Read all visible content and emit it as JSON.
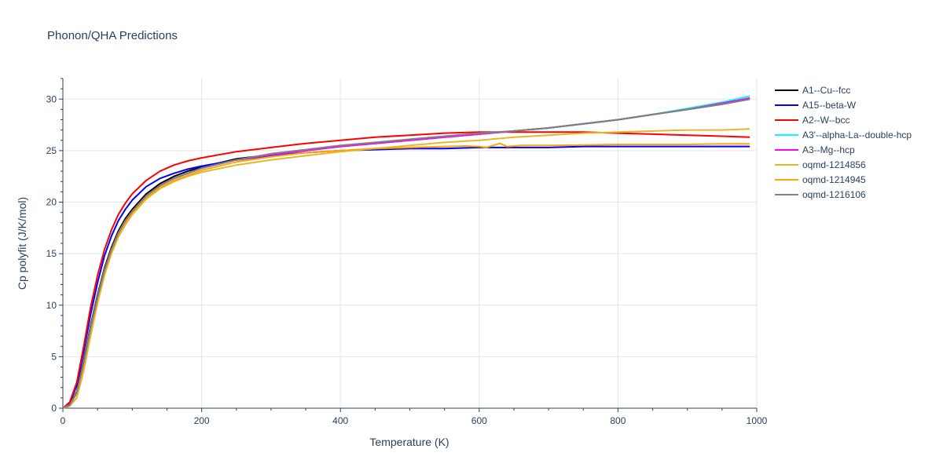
{
  "chart_data": {
    "type": "line",
    "title": "Phonon/QHA Predictions",
    "xlabel": "Temperature (K)",
    "ylabel": "Cp polyfit (J/K/mol)",
    "xlim": [
      0,
      1000
    ],
    "ylim": [
      0,
      32
    ],
    "xticks": [
      0,
      200,
      400,
      600,
      800,
      1000
    ],
    "yticks": [
      0,
      5,
      10,
      15,
      20,
      25,
      30
    ],
    "grid": true,
    "legend_position": "right",
    "series": [
      {
        "name": "A1--Cu--fcc",
        "color": "#000000",
        "x": [
          0,
          10,
          20,
          30,
          40,
          50,
          60,
          70,
          80,
          90,
          100,
          120,
          140,
          160,
          180,
          200,
          250,
          300,
          350,
          400,
          450,
          500,
          550,
          600,
          650,
          700,
          750,
          800,
          850,
          900,
          950,
          990
        ],
        "y": [
          0,
          0.3,
          1.6,
          4.6,
          8.0,
          11.0,
          13.6,
          15.6,
          17.2,
          18.4,
          19.3,
          20.8,
          21.8,
          22.5,
          23.0,
          23.4,
          24.2,
          24.6,
          25.0,
          25.4,
          25.7,
          26.0,
          26.3,
          26.6,
          26.9,
          27.2,
          27.6,
          28.0,
          28.5,
          29.0,
          29.5,
          30.0
        ]
      },
      {
        "name": "A15--beta-W",
        "color": "#0000ff",
        "x": [
          0,
          10,
          20,
          30,
          40,
          50,
          60,
          70,
          80,
          90,
          100,
          120,
          140,
          160,
          180,
          200,
          250,
          300,
          350,
          400,
          450,
          500,
          550,
          600,
          650,
          700,
          750,
          800,
          850,
          900,
          950,
          990
        ],
        "y": [
          0,
          0.5,
          2.2,
          5.5,
          9.1,
          12.2,
          14.8,
          16.7,
          18.2,
          19.3,
          20.2,
          21.5,
          22.3,
          22.8,
          23.2,
          23.5,
          24.1,
          24.5,
          24.8,
          25.0,
          25.1,
          25.2,
          25.2,
          25.3,
          25.3,
          25.3,
          25.4,
          25.4,
          25.4,
          25.4,
          25.4,
          25.4
        ]
      },
      {
        "name": "A2--W--bcc",
        "color": "#ff0000",
        "x": [
          0,
          10,
          20,
          30,
          40,
          50,
          60,
          70,
          80,
          90,
          100,
          120,
          140,
          160,
          180,
          200,
          250,
          300,
          350,
          400,
          450,
          500,
          550,
          600,
          650,
          700,
          750,
          800,
          850,
          900,
          950,
          990
        ],
        "y": [
          0,
          0.6,
          2.5,
          6.0,
          9.8,
          12.9,
          15.4,
          17.3,
          18.8,
          19.9,
          20.8,
          22.1,
          23.0,
          23.6,
          24.0,
          24.3,
          24.9,
          25.3,
          25.7,
          26.0,
          26.3,
          26.5,
          26.7,
          26.8,
          26.8,
          26.8,
          26.8,
          26.7,
          26.6,
          26.5,
          26.4,
          26.3
        ]
      },
      {
        "name": "A3'--alpha-La--double-hcp",
        "color": "#00ffff",
        "x": [
          0,
          10,
          20,
          30,
          40,
          50,
          60,
          70,
          80,
          90,
          100,
          120,
          140,
          160,
          180,
          200,
          250,
          300,
          350,
          400,
          450,
          500,
          550,
          600,
          650,
          700,
          750,
          800,
          850,
          900,
          950,
          990
        ],
        "y": [
          0,
          0.3,
          1.5,
          4.4,
          7.8,
          10.8,
          13.4,
          15.4,
          17.0,
          18.2,
          19.1,
          20.6,
          21.6,
          22.3,
          22.8,
          23.3,
          24.1,
          24.6,
          25.0,
          25.4,
          25.7,
          26.0,
          26.3,
          26.6,
          26.9,
          27.2,
          27.6,
          28.0,
          28.5,
          29.1,
          29.7,
          30.3
        ]
      },
      {
        "name": "A3--Mg--hcp",
        "color": "#ff00ff",
        "x": [
          0,
          10,
          20,
          30,
          40,
          50,
          60,
          70,
          80,
          90,
          100,
          120,
          140,
          160,
          180,
          200,
          250,
          300,
          350,
          400,
          450,
          500,
          550,
          600,
          650,
          700,
          750,
          800,
          850,
          900,
          950,
          990
        ],
        "y": [
          0,
          0.3,
          1.5,
          4.4,
          7.8,
          10.8,
          13.4,
          15.4,
          17.0,
          18.2,
          19.1,
          20.6,
          21.6,
          22.3,
          22.8,
          23.3,
          24.1,
          24.6,
          25.0,
          25.4,
          25.7,
          26.0,
          26.3,
          26.6,
          26.9,
          27.2,
          27.6,
          28.0,
          28.5,
          29.0,
          29.6,
          30.1
        ]
      },
      {
        "name": "oqmd-1214856",
        "color": "#e5b82a",
        "x": [
          0,
          10,
          20,
          30,
          40,
          50,
          60,
          70,
          80,
          90,
          100,
          120,
          140,
          160,
          180,
          200,
          250,
          300,
          350,
          400,
          450,
          500,
          550,
          600,
          650,
          700,
          750,
          800,
          850,
          900,
          950,
          990
        ],
        "y": [
          0,
          0.2,
          1.0,
          3.6,
          7.0,
          10.2,
          12.9,
          15.0,
          16.6,
          17.8,
          18.8,
          20.3,
          21.3,
          22.0,
          22.5,
          22.9,
          23.6,
          24.1,
          24.5,
          24.9,
          25.2,
          25.5,
          25.8,
          26.0,
          26.3,
          26.5,
          26.7,
          26.8,
          26.9,
          27.0,
          27.0,
          27.1
        ]
      },
      {
        "name": "oqmd-1214945",
        "color": "#ffa500",
        "x": [
          0,
          10,
          20,
          30,
          40,
          50,
          60,
          70,
          80,
          90,
          100,
          120,
          140,
          160,
          180,
          200,
          250,
          300,
          350,
          400,
          450,
          500,
          550,
          580,
          600,
          610,
          620,
          630,
          640,
          650,
          660,
          700,
          750,
          800,
          850,
          900,
          950,
          990
        ],
        "y": [
          0,
          0.3,
          1.4,
          4.2,
          7.6,
          10.6,
          13.2,
          15.2,
          16.8,
          18.0,
          18.9,
          20.4,
          21.4,
          22.1,
          22.6,
          23.1,
          23.9,
          24.4,
          24.8,
          25.0,
          25.2,
          25.3,
          25.4,
          25.45,
          25.4,
          25.3,
          25.5,
          25.7,
          25.4,
          25.45,
          25.5,
          25.5,
          25.55,
          25.6,
          25.6,
          25.6,
          25.65,
          25.65
        ]
      },
      {
        "name": "oqmd-1216106",
        "color": "#808080",
        "x": [
          0,
          10,
          20,
          30,
          40,
          50,
          60,
          70,
          80,
          90,
          100,
          120,
          140,
          160,
          180,
          200,
          250,
          300,
          350,
          400,
          450,
          500,
          550,
          600,
          650,
          700,
          750,
          800,
          850,
          900,
          950,
          990
        ],
        "y": [
          0,
          0.3,
          1.5,
          4.4,
          7.8,
          10.8,
          13.4,
          15.4,
          17.0,
          18.2,
          19.1,
          20.6,
          21.6,
          22.3,
          22.8,
          23.3,
          24.1,
          24.7,
          25.1,
          25.5,
          25.8,
          26.1,
          26.4,
          26.7,
          26.9,
          27.2,
          27.6,
          28.0,
          28.5,
          29.0,
          29.5,
          30.0
        ]
      }
    ]
  }
}
